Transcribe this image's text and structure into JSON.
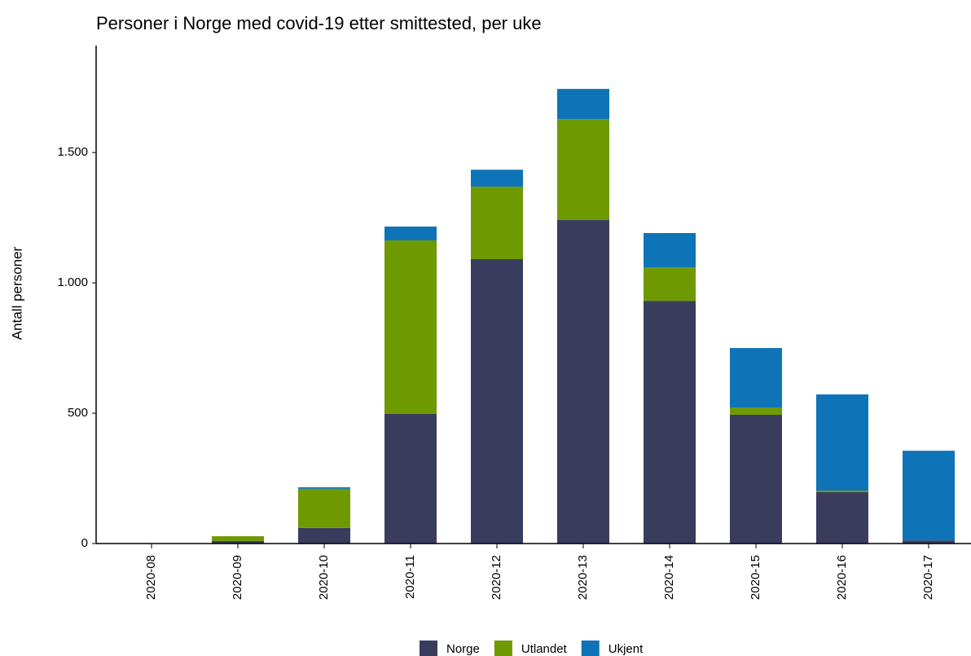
{
  "chart_data": {
    "type": "stacked_bar",
    "title": "Personer i Norge med covid-19 etter smittested, per uke",
    "y_label": "Antall personer",
    "categories": [
      "2020-08",
      "2020-09",
      "2020-10",
      "2020-11",
      "2020-12",
      "2020-13",
      "2020-14",
      "2020-15",
      "2020-16",
      "2020-17"
    ],
    "series": [
      {
        "name": "Norge",
        "color": "#3a3c5e",
        "values": [
          1,
          10,
          60,
          497,
          1091,
          1241,
          931,
          494,
          197,
          12
        ]
      },
      {
        "name": "Utlandet",
        "color": "#6e9a00",
        "values": [
          0,
          18,
          150,
          666,
          278,
          387,
          128,
          28,
          6,
          0
        ]
      },
      {
        "name": "Ukjent",
        "color": "#0e74b7",
        "values": [
          0,
          0,
          6,
          53,
          65,
          116,
          132,
          228,
          369,
          344
        ]
      }
    ],
    "ylim": [
      0,
      1910
    ],
    "yticks": [
      0,
      500,
      {
        "value": 1000,
        "label": "1.000"
      },
      {
        "value": 1500,
        "label": "1.500"
      }
    ]
  }
}
